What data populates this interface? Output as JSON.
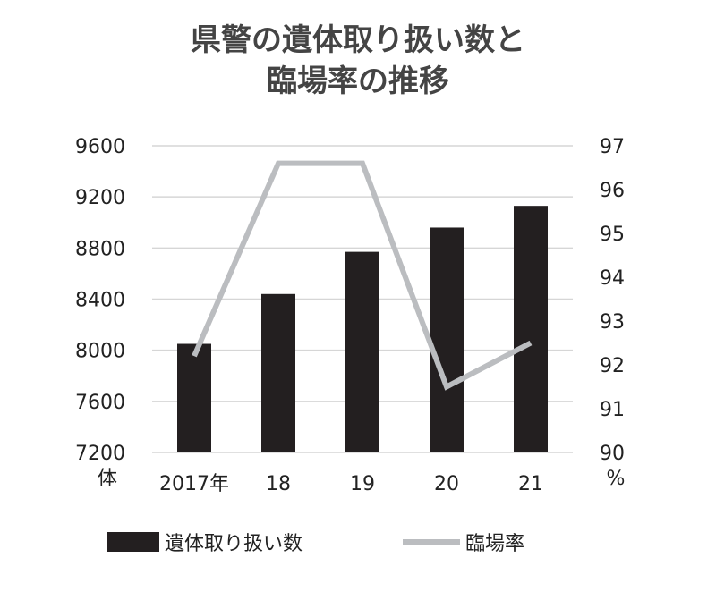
{
  "chart_data": {
    "type": "bar+line",
    "title_line1": "県警の遺体取り扱い数と",
    "title_line2": "臨場率の推移",
    "categories": [
      "2017年",
      "18",
      "19",
      "20",
      "21"
    ],
    "series": [
      {
        "name": "遺体取り扱い数",
        "type": "bar",
        "axis": "left",
        "values": [
          8050,
          8440,
          8770,
          8960,
          9130
        ]
      },
      {
        "name": "臨場率",
        "type": "line",
        "axis": "right",
        "values": [
          92.2,
          96.6,
          96.6,
          91.5,
          92.5
        ]
      }
    ],
    "left_axis": {
      "ticks": [
        "9600",
        "9200",
        "8800",
        "8400",
        "8000",
        "7600",
        "7200"
      ],
      "unit": "体",
      "ylim": [
        7200,
        9600
      ]
    },
    "right_axis": {
      "ticks": [
        "97",
        "96",
        "95",
        "94",
        "93",
        "92",
        "91",
        "90"
      ],
      "unit": "%",
      "ylim": [
        90,
        97
      ]
    },
    "grid": true,
    "legend_position": "bottom",
    "colors": {
      "bar": "#231f20",
      "line": "#bbbdc0",
      "grid": "#d6d6d6",
      "title": "#444444"
    }
  }
}
